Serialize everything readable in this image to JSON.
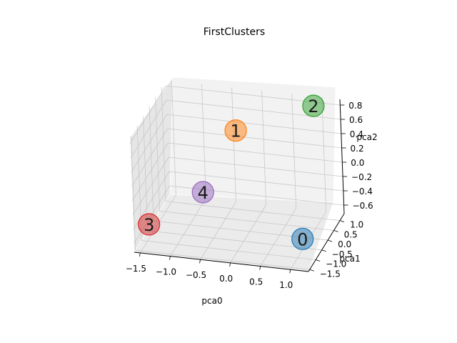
{
  "chart_data": {
    "type": "scatter",
    "projection": "3d",
    "title": "FirstClusters",
    "xlabel": "pca0",
    "ylabel": "pca1",
    "zlabel": "pca2",
    "xlim": [
      -1.6,
      1.3
    ],
    "ylim": [
      -1.6,
      1.35
    ],
    "zlim": [
      -0.72,
      0.88
    ],
    "x_ticks": [
      "−1.5",
      "−1.0",
      "−0.5",
      "0.0",
      "0.5",
      "1.0"
    ],
    "y_ticks": [
      "−1.5",
      "−1.0",
      "−0.5",
      "0.0",
      "0.5",
      "1.0"
    ],
    "z_ticks": [
      "−0.6",
      "−0.4",
      "−0.2",
      "0.0",
      "0.2",
      "0.4",
      "0.6",
      "0.8"
    ],
    "grid": true,
    "points": [
      {
        "label": "0",
        "x": 1.2,
        "y": -1.5,
        "z": -0.3,
        "color": "#1f77b4"
      },
      {
        "label": "1",
        "x": -0.3,
        "y": 0.6,
        "z": 0.5,
        "color": "#ff7f0e"
      },
      {
        "label": "2",
        "x": 0.95,
        "y": 0.9,
        "z": 0.88,
        "color": "#2ca02c"
      },
      {
        "label": "3",
        "x": -1.55,
        "y": -0.6,
        "z": -0.6,
        "color": "#d62728"
      },
      {
        "label": "4",
        "x": -0.8,
        "y": 0.2,
        "z": -0.3,
        "color": "#9467bd"
      }
    ]
  }
}
